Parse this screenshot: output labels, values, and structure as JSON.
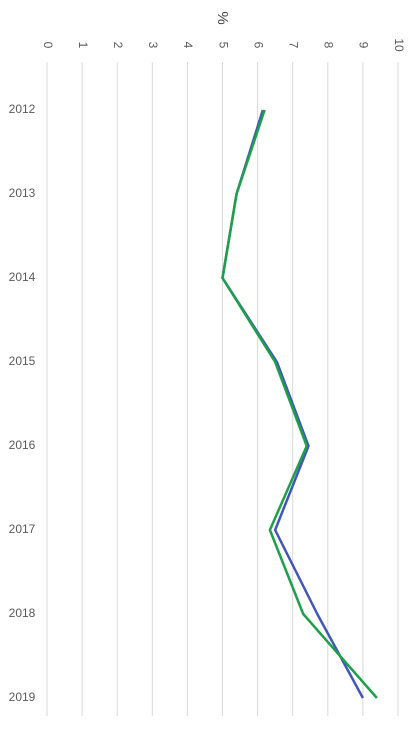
{
  "chart_data": {
    "type": "line",
    "y_label": "%",
    "categories": [
      "2012",
      "2013",
      "2014",
      "2015",
      "2016",
      "2017",
      "2018",
      "2019"
    ],
    "series": [
      {
        "color": "#4156b8",
        "values": [
          6.15,
          5.4,
          5.0,
          6.55,
          7.45,
          6.5,
          7.7,
          9.0
        ]
      },
      {
        "color": "#1ea04a",
        "values": [
          6.2,
          5.4,
          5.0,
          6.5,
          7.4,
          6.35,
          7.3,
          9.4
        ]
      }
    ],
    "ylim": [
      0,
      10
    ],
    "yticks": [
      0,
      1,
      2,
      3,
      4,
      5,
      6,
      7,
      8,
      9,
      10
    ],
    "grid": true
  }
}
